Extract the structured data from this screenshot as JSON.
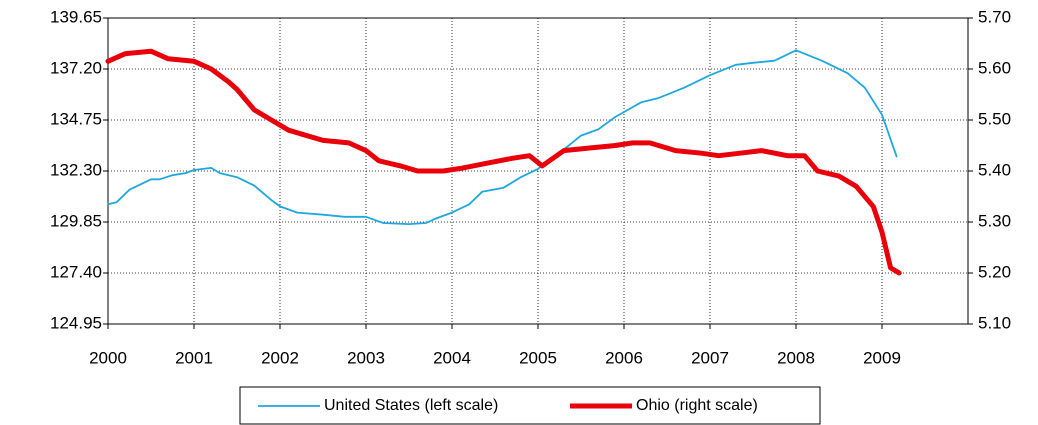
{
  "chart_data": {
    "type": "line",
    "xlim": [
      2000,
      2010
    ],
    "xticks": [
      2000,
      2001,
      2002,
      2003,
      2004,
      2005,
      2006,
      2007,
      2008,
      2009
    ],
    "ylim": [
      124.95,
      139.65
    ],
    "yticks": [
      124.95,
      {
        "value": 127.4,
        "label": "127.40"
      },
      129.85,
      {
        "value": 132.3,
        "label": "132.30"
      },
      134.75,
      {
        "value": 137.2,
        "label": "137.20"
      },
      139.65
    ],
    "y2lim": [
      5.1,
      5.7
    ],
    "y2ticks": [
      {
        "value": 5.1,
        "label": "5.10"
      },
      {
        "value": 5.2,
        "label": "5.20"
      },
      {
        "value": 5.3,
        "label": "5.30"
      },
      {
        "value": 5.4,
        "label": "5.40"
      },
      {
        "value": 5.5,
        "label": "5.50"
      },
      {
        "value": 5.6,
        "label": "5.60"
      },
      {
        "value": 5.7,
        "label": "5.70"
      }
    ],
    "grid": true,
    "legend": "bottom",
    "series": [
      {
        "name": "United States (left scale)",
        "color": "#1ea7e1",
        "axis": "y",
        "x": [
          2000.0,
          2000.1,
          2000.25,
          2000.5,
          2000.6,
          2000.75,
          2000.9,
          2001.0,
          2001.2,
          2001.3,
          2001.5,
          2001.7,
          2001.9,
          2002.0,
          2002.2,
          2002.5,
          2002.75,
          2003.0,
          2003.2,
          2003.5,
          2003.7,
          2003.8,
          2004.0,
          2004.2,
          2004.35,
          2004.6,
          2004.8,
          2005.0,
          2005.2,
          2005.5,
          2005.7,
          2005.9,
          2006.2,
          2006.4,
          2006.7,
          2007.0,
          2007.3,
          2007.5,
          2007.75,
          2008.0,
          2008.3,
          2008.6,
          2008.8,
          2009.0,
          2009.17
        ],
        "values": [
          130.7,
          130.8,
          131.4,
          131.9,
          131.9,
          132.1,
          132.2,
          132.35,
          132.45,
          132.2,
          132.0,
          131.6,
          130.9,
          130.6,
          130.3,
          130.2,
          130.1,
          130.1,
          129.8,
          129.75,
          129.8,
          130.0,
          130.3,
          130.7,
          131.3,
          131.5,
          132.0,
          132.4,
          133.0,
          134.0,
          134.3,
          134.9,
          135.6,
          135.8,
          136.3,
          136.9,
          137.4,
          137.5,
          137.6,
          138.1,
          137.6,
          137.0,
          136.3,
          135.0,
          133.0
        ]
      },
      {
        "name": "Ohio (right scale)",
        "color": "#e8000b",
        "axis": "y2",
        "x": [
          2000.0,
          2000.2,
          2000.5,
          2000.7,
          2001.0,
          2001.2,
          2001.4,
          2001.5,
          2001.7,
          2001.9,
          2002.1,
          2002.3,
          2002.5,
          2002.8,
          2003.0,
          2003.15,
          2003.4,
          2003.6,
          2003.9,
          2004.1,
          2004.4,
          2004.7,
          2004.9,
          2005.05,
          2005.3,
          2005.6,
          2005.9,
          2006.1,
          2006.3,
          2006.6,
          2006.9,
          2007.1,
          2007.35,
          2007.6,
          2007.9,
          2008.1,
          2008.25,
          2008.5,
          2008.7,
          2008.9,
          2009.0,
          2009.1,
          2009.2
        ],
        "values": [
          5.615,
          5.63,
          5.635,
          5.62,
          5.615,
          5.6,
          5.575,
          5.56,
          5.52,
          5.5,
          5.48,
          5.47,
          5.46,
          5.455,
          5.44,
          5.42,
          5.41,
          5.4,
          5.4,
          5.405,
          5.415,
          5.425,
          5.43,
          5.41,
          5.44,
          5.445,
          5.45,
          5.455,
          5.455,
          5.44,
          5.435,
          5.43,
          5.435,
          5.44,
          5.43,
          5.43,
          5.4,
          5.39,
          5.37,
          5.33,
          5.28,
          5.21,
          5.2
        ]
      }
    ]
  }
}
